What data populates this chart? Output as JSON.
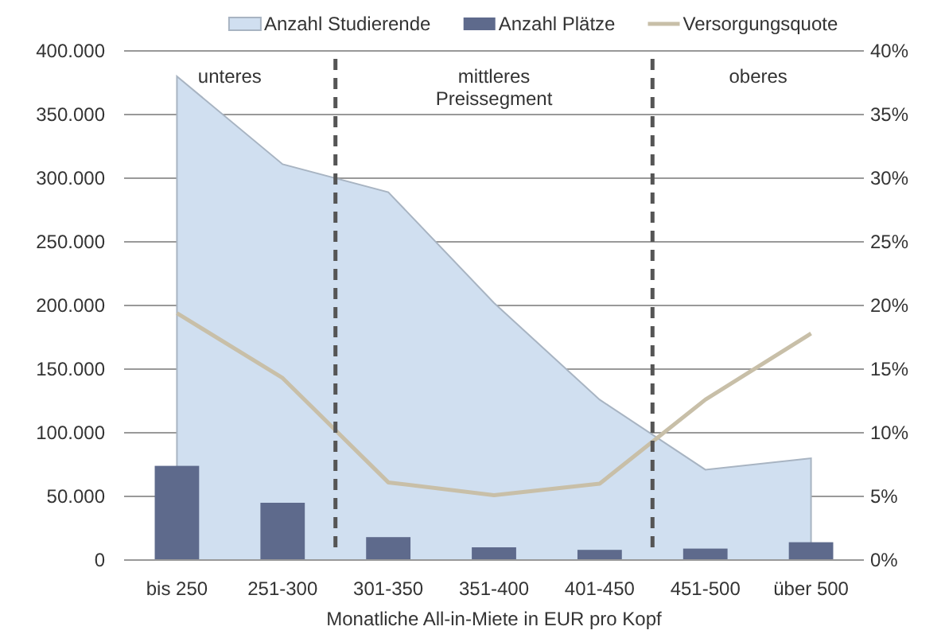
{
  "chart_data": {
    "type": "bar",
    "xlabel": "Monatliche All-in-Miete in EUR pro Kopf",
    "categories": [
      "bis 250",
      "251-300",
      "301-350",
      "351-400",
      "401-450",
      "451-500",
      "über 500"
    ],
    "series": [
      {
        "name": "Anzahl Studierende",
        "type": "area",
        "color": "#d0dff0",
        "values": [
          380000,
          311000,
          289000,
          202000,
          126000,
          71000,
          80000
        ]
      },
      {
        "name": "Anzahl Plätze",
        "color": "#5e6a8c",
        "values": [
          74000,
          45000,
          18000,
          10000,
          8000,
          9000,
          14000
        ]
      },
      {
        "name": "Versorgungsquote",
        "type": "line",
        "axis": "y2",
        "color": "#c8bfa8",
        "values": [
          19.4,
          14.3,
          6.1,
          5.1,
          6.0,
          12.6,
          17.8
        ]
      }
    ],
    "ylim": [
      0,
      400000
    ],
    "yticks": [
      {
        "value": 0,
        "label": "0"
      },
      {
        "value": 50000,
        "label": "50.000"
      },
      {
        "value": 100000,
        "label": "100.000"
      },
      {
        "value": 150000,
        "label": "150.000"
      },
      {
        "value": 200000,
        "label": "200.000"
      },
      {
        "value": 250000,
        "label": "250.000"
      },
      {
        "value": 300000,
        "label": "300.000"
      },
      {
        "value": 350000,
        "label": "350.000"
      },
      {
        "value": 400000,
        "label": "400.000"
      }
    ],
    "y2lim": [
      0,
      40
    ],
    "y2ticks": [
      {
        "value": 0,
        "label": "0%"
      },
      {
        "value": 5,
        "label": "5%"
      },
      {
        "value": 10,
        "label": "10%"
      },
      {
        "value": 15,
        "label": "15%"
      },
      {
        "value": 20,
        "label": "20%"
      },
      {
        "value": 25,
        "label": "25%"
      },
      {
        "value": 30,
        "label": "30%"
      },
      {
        "value": 35,
        "label": "35%"
      },
      {
        "value": 40,
        "label": "40%"
      }
    ],
    "annotations": [
      "unteres",
      "mittleres\nPreissegment",
      "oberes"
    ],
    "grid": "y",
    "legend": "top",
    "marker": "none",
    "line_style": "solid"
  }
}
